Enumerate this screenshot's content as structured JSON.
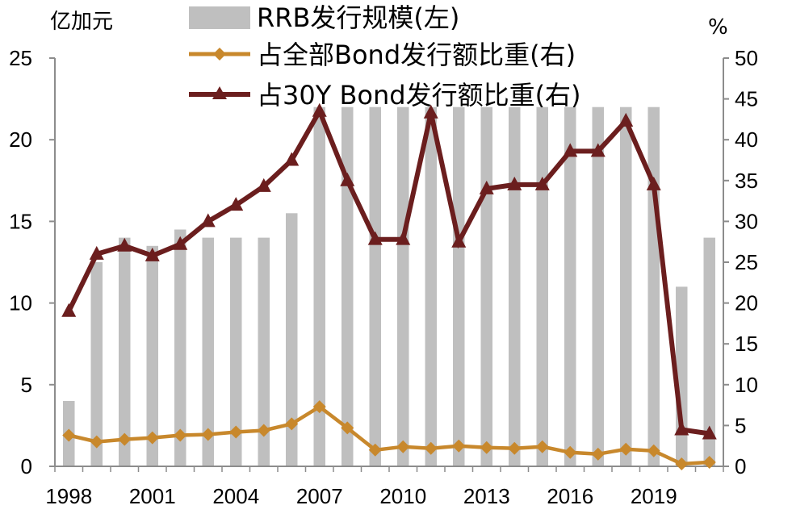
{
  "chart_data": {
    "type": "bar",
    "title": "",
    "left_unit": "亿加元",
    "right_unit": "%",
    "x_tick_labels": [
      "1998",
      "2001",
      "2004",
      "2007",
      "2010",
      "2013",
      "2016",
      "2019"
    ],
    "x": [
      1998,
      1999,
      2000,
      2001,
      2002,
      2003,
      2004,
      2005,
      2006,
      2007,
      2008,
      2009,
      2010,
      2011,
      2012,
      2013,
      2014,
      2015,
      2016,
      2017,
      2018,
      2019,
      2020,
      2021
    ],
    "y_left_ticks": [
      "0",
      "5",
      "10",
      "15",
      "20",
      "25"
    ],
    "y_right_ticks": [
      "0",
      "5",
      "10",
      "15",
      "20",
      "25",
      "30",
      "35",
      "40",
      "45",
      "50"
    ],
    "ylim_left": [
      0,
      25
    ],
    "ylim_right": [
      0,
      50
    ],
    "grid": false,
    "legend_position": "top",
    "series": [
      {
        "name": "RRB发行规模(左)",
        "type": "bar",
        "axis": "left",
        "color": "#bfbfbf",
        "values": [
          4.0,
          12.5,
          14.0,
          13.5,
          14.5,
          14.0,
          14.0,
          14.0,
          15.5,
          22.0,
          22.0,
          22.0,
          22.0,
          22.0,
          22.0,
          22.0,
          22.0,
          22.0,
          22.0,
          22.0,
          22.0,
          22.0,
          11.0,
          14.0
        ]
      },
      {
        "name": "占全部Bond发行额比重(右)",
        "type": "line",
        "axis": "right",
        "color": "#c8882c",
        "marker": "diamond",
        "values": [
          3.8,
          3.0,
          3.3,
          3.5,
          3.8,
          3.9,
          4.2,
          4.4,
          5.2,
          7.3,
          4.7,
          2.0,
          2.4,
          2.2,
          2.5,
          2.3,
          2.2,
          2.4,
          1.7,
          1.5,
          2.1,
          1.9,
          0.3,
          0.5
        ]
      },
      {
        "name": "占30Y Bond发行额比重(右)",
        "type": "line",
        "axis": "right",
        "color": "#6b1e1e",
        "marker": "triangle",
        "values": [
          19.0,
          26.0,
          27.0,
          25.8,
          27.2,
          30.0,
          32.0,
          34.3,
          37.5,
          43.5,
          35.0,
          27.8,
          27.8,
          43.3,
          27.5,
          34.0,
          34.5,
          34.5,
          38.6,
          38.6,
          42.3,
          34.5,
          4.5,
          4.0
        ]
      }
    ]
  }
}
